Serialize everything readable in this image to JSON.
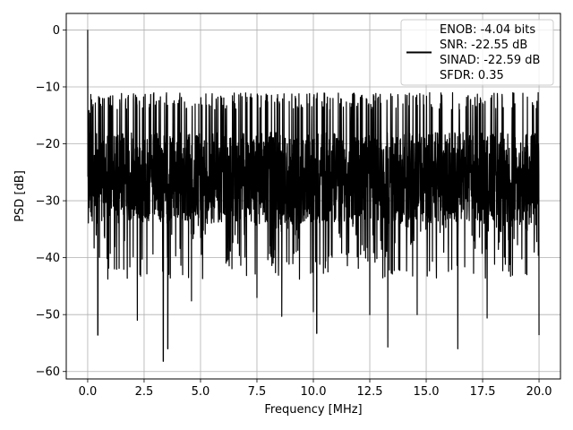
{
  "chart_data": {
    "type": "line",
    "xlabel": "Frequency [MHz]",
    "ylabel": "PSD [dB]",
    "xlim": [
      -0.95,
      20.95
    ],
    "ylim": [
      -61.3,
      2.9
    ],
    "xticks": [
      0.0,
      2.5,
      5.0,
      7.5,
      10.0,
      12.5,
      15.0,
      17.5,
      20.0
    ],
    "xtick_labels": [
      "0.0",
      "2.5",
      "5.0",
      "7.5",
      "10.0",
      "12.5",
      "15.0",
      "17.5",
      "20.0"
    ],
    "yticks": [
      0,
      -10,
      -20,
      -30,
      -40,
      -50,
      -60
    ],
    "ytick_labels": [
      "0",
      "−10",
      "−20",
      "−30",
      "−40",
      "−50",
      "−60"
    ],
    "grid": true,
    "legend_position": "upper-right",
    "line_color": "#000000",
    "x_range": [
      0.0,
      20.0
    ],
    "peak": {
      "x": 0.0,
      "y": 0.0
    },
    "upper_envelope_db": -15.5,
    "typical_band_db": [
      -34,
      -18
    ],
    "notable_dips": [
      {
        "x": 0.45,
        "y": -53.6
      },
      {
        "x": 2.2,
        "y": -51.0
      },
      {
        "x": 3.35,
        "y": -58.2
      },
      {
        "x": 3.55,
        "y": -56.0
      },
      {
        "x": 4.6,
        "y": -47.6
      },
      {
        "x": 7.5,
        "y": -47.0
      },
      {
        "x": 8.6,
        "y": -50.3
      },
      {
        "x": 10.0,
        "y": -49.5
      },
      {
        "x": 10.15,
        "y": -53.3
      },
      {
        "x": 12.5,
        "y": -50.0
      },
      {
        "x": 13.3,
        "y": -55.7
      },
      {
        "x": 14.6,
        "y": -50.0
      },
      {
        "x": 16.4,
        "y": -56.0
      },
      {
        "x": 17.7,
        "y": -50.6
      },
      {
        "x": 20.0,
        "y": -53.6
      }
    ],
    "series": [
      {
        "name": "ENOB: -4.04 bits\nSNR: -22.55 dB\nSINAD: -22.59 dB\nSFDR: 0.35"
      }
    ],
    "legend_lines": [
      "ENOB: -4.04 bits",
      "SNR: -22.55 dB",
      "SINAD: -22.59 dB",
      "SFDR: 0.35"
    ]
  }
}
